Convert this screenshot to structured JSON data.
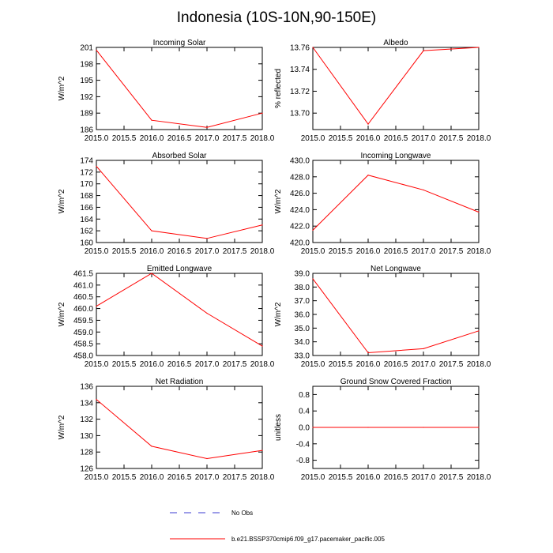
{
  "title": "Indonesia (10S-10N,90-150E)",
  "colors": {
    "model": "#ff0000",
    "obs": "#3b3bd0",
    "axis": "#000000"
  },
  "legend": {
    "obs_label": "No Obs",
    "model_label": "b.e21.BSSP370cmip6.f09_g17.pacemaker_pacific.005"
  },
  "chart_data": [
    {
      "type": "line",
      "title": "Incoming Solar",
      "ylabel": "W/m^2",
      "x": [
        2015,
        2016,
        2017,
        2018
      ],
      "values": [
        200.5,
        187.7,
        186.4,
        189.0
      ],
      "xlim": [
        2015,
        2018
      ],
      "ylim": [
        186,
        201
      ],
      "yticks": [
        186,
        189,
        192,
        195,
        198,
        201
      ],
      "ytick_labels": [
        "186",
        "189",
        "192",
        "195",
        "198",
        "201"
      ]
    },
    {
      "type": "line",
      "title": "Albedo",
      "ylabel": "% reflected",
      "x": [
        2015,
        2016,
        2017,
        2018
      ],
      "values": [
        13.76,
        13.69,
        13.757,
        13.76
      ],
      "xlim": [
        2015,
        2018
      ],
      "ylim": [
        13.685,
        13.76
      ],
      "yticks": [
        13.7,
        13.72,
        13.74,
        13.76
      ],
      "ytick_labels": [
        "13.70",
        "13.72",
        "13.74",
        "13.76"
      ]
    },
    {
      "type": "line",
      "title": "Absorbed Solar",
      "ylabel": "W/m^2",
      "x": [
        2015,
        2016,
        2017,
        2018
      ],
      "values": [
        173.0,
        162.0,
        160.7,
        163.0
      ],
      "xlim": [
        2015,
        2018
      ],
      "ylim": [
        160,
        174
      ],
      "yticks": [
        160,
        162,
        164,
        166,
        168,
        170,
        172,
        174
      ],
      "ytick_labels": [
        "160",
        "162",
        "164",
        "166",
        "168",
        "170",
        "172",
        "174"
      ]
    },
    {
      "type": "line",
      "title": "Incoming Longwave",
      "ylabel": "W/m^2",
      "x": [
        2015,
        2016,
        2017,
        2018
      ],
      "values": [
        421.5,
        428.2,
        426.4,
        423.7
      ],
      "xlim": [
        2015,
        2018
      ],
      "ylim": [
        420,
        430
      ],
      "yticks": [
        420,
        422,
        424,
        426,
        428,
        430
      ],
      "ytick_labels": [
        "420.0",
        "422.0",
        "424.0",
        "426.0",
        "428.0",
        "430.0"
      ]
    },
    {
      "type": "line",
      "title": "Emitted Longwave",
      "ylabel": "W/m^2",
      "x": [
        2015,
        2016,
        2017,
        2018
      ],
      "values": [
        460.1,
        461.5,
        459.8,
        458.4
      ],
      "xlim": [
        2015,
        2018
      ],
      "ylim": [
        458,
        461.5
      ],
      "yticks": [
        458.0,
        458.5,
        459.0,
        459.5,
        460.0,
        460.5,
        461.0,
        461.5
      ],
      "ytick_labels": [
        "458.0",
        "458.5",
        "459.0",
        "459.5",
        "460.0",
        "460.5",
        "461.0",
        "461.5"
      ]
    },
    {
      "type": "line",
      "title": "Net Longwave",
      "ylabel": "W/m^2",
      "x": [
        2015,
        2016,
        2017,
        2018
      ],
      "values": [
        38.6,
        33.2,
        33.5,
        34.8
      ],
      "xlim": [
        2015,
        2018
      ],
      "ylim": [
        33,
        39
      ],
      "yticks": [
        33,
        34,
        35,
        36,
        37,
        38,
        39
      ],
      "ytick_labels": [
        "33.0",
        "34.0",
        "35.0",
        "36.0",
        "37.0",
        "38.0",
        "39.0"
      ]
    },
    {
      "type": "line",
      "title": "Net Radiation",
      "ylabel": "W/m^2",
      "x": [
        2015,
        2016,
        2017,
        2018
      ],
      "values": [
        134.4,
        128.7,
        127.2,
        128.2
      ],
      "xlim": [
        2015,
        2018
      ],
      "ylim": [
        126,
        136
      ],
      "yticks": [
        126,
        128,
        130,
        132,
        134,
        136
      ],
      "ytick_labels": [
        "126",
        "128",
        "130",
        "132",
        "134",
        "136"
      ]
    },
    {
      "type": "line",
      "title": "Ground Snow Covered Fraction",
      "ylabel": "unitless",
      "x": [
        2015,
        2016,
        2017,
        2018
      ],
      "values": [
        0.0,
        0.0,
        0.0,
        0.0
      ],
      "xlim": [
        2015,
        2018
      ],
      "ylim": [
        -1,
        1
      ],
      "yticks": [
        -0.8,
        -0.4,
        0.0,
        0.4,
        0.8
      ],
      "ytick_labels": [
        "-0.8",
        "-0.4",
        "0.0",
        "0.4",
        "0.8"
      ]
    }
  ],
  "xaxis": {
    "ticks": [
      2015.0,
      2015.5,
      2016.0,
      2016.5,
      2017.0,
      2017.5,
      2018.0
    ],
    "tick_labels": [
      "2015.0",
      "2015.5",
      "2016.0",
      "2016.5",
      "2017.0",
      "2017.5",
      "2018.0"
    ]
  }
}
